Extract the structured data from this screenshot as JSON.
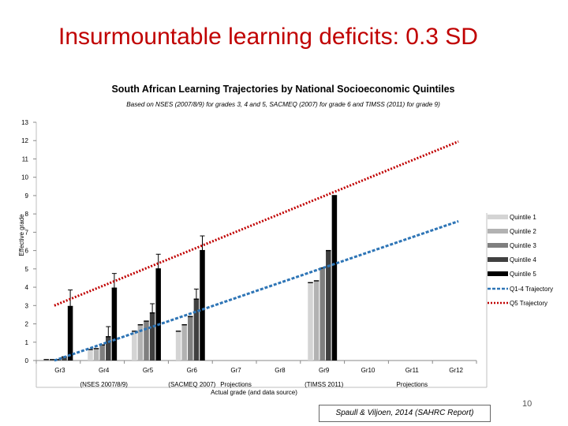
{
  "slide": {
    "title": "Insurmountable learning deficits: 0.3 SD",
    "citation": "Spaull & Viljoen, 2014 (SAHRC Report)",
    "slide_number": "10"
  },
  "colors": {
    "title": "#c00000",
    "quintiles": [
      "#d4d4d4",
      "#b2b2b2",
      "#7f7f7f",
      "#404040",
      "#000000"
    ],
    "q14_trajectory": "#2e75b6",
    "q5_trajectory": "#c00000"
  },
  "chart_data": {
    "type": "bar",
    "title": "South African Learning Trajectories by National Socioeconomic Quintiles",
    "subtitle": "Based on NSES (2007/8/9) for grades 3, 4 and 5, SACMEQ (2007) for grade 6 and TIMSS (2011) for grade 9)",
    "ylabel": "Effective grade",
    "xlabel": "Actual grade (and data source)",
    "ylim": [
      0,
      13
    ],
    "yticks": [
      "0",
      "1",
      "2",
      "3",
      "4",
      "5",
      "6",
      "7",
      "8",
      "9",
      "10",
      "11",
      "12",
      "13"
    ],
    "categories": [
      "Gr3",
      "Gr4",
      "Gr5",
      "Gr6",
      "Gr7",
      "Gr8",
      "Gr9",
      "Gr10",
      "Gr11",
      "Gr12"
    ],
    "category_sublabels": [
      "",
      "(NSES 2007/8/9)",
      "",
      "(SACMEQ 2007)",
      "Projections",
      "",
      "(TIMSS 2011)",
      "",
      "Projections",
      ""
    ],
    "series": [
      {
        "name": "Quintile 1",
        "values": [
          0.05,
          0.6,
          1.6,
          1.6,
          null,
          null,
          4.25,
          null,
          null,
          null
        ]
      },
      {
        "name": "Quintile 2",
        "values": [
          0.05,
          0.65,
          1.95,
          1.95,
          null,
          null,
          4.35,
          null,
          null,
          null
        ]
      },
      {
        "name": "Quintile 3",
        "values": [
          0.05,
          0.85,
          2.15,
          2.4,
          null,
          null,
          5.05,
          null,
          null,
          null
        ]
      },
      {
        "name": "Quintile 4",
        "values": [
          0.2,
          1.3,
          2.6,
          3.35,
          null,
          null,
          6.0,
          null,
          null,
          null
        ]
      },
      {
        "name": "Quintile 5",
        "values": [
          2.95,
          3.95,
          5.0,
          6.0,
          null,
          null,
          9.0,
          null,
          null,
          null
        ]
      }
    ],
    "error_bar_tops": [
      [
        null,
        null,
        null,
        null,
        3.85
      ],
      [
        null,
        null,
        null,
        1.85,
        4.75
      ],
      [
        null,
        null,
        null,
        3.1,
        5.8
      ],
      [
        null,
        null,
        null,
        3.9,
        6.8
      ],
      null,
      null,
      null,
      null,
      null,
      null
    ],
    "trajectories": [
      {
        "name": "Q1-4 Trajectory",
        "x": [
          1,
          10
        ],
        "y": [
          0.0,
          7.6
        ]
      },
      {
        "name": "Q5 Trajectory",
        "x": [
          1,
          10
        ],
        "y": [
          3.0,
          11.95
        ]
      }
    ],
    "legend_position": "right",
    "grid": false
  }
}
